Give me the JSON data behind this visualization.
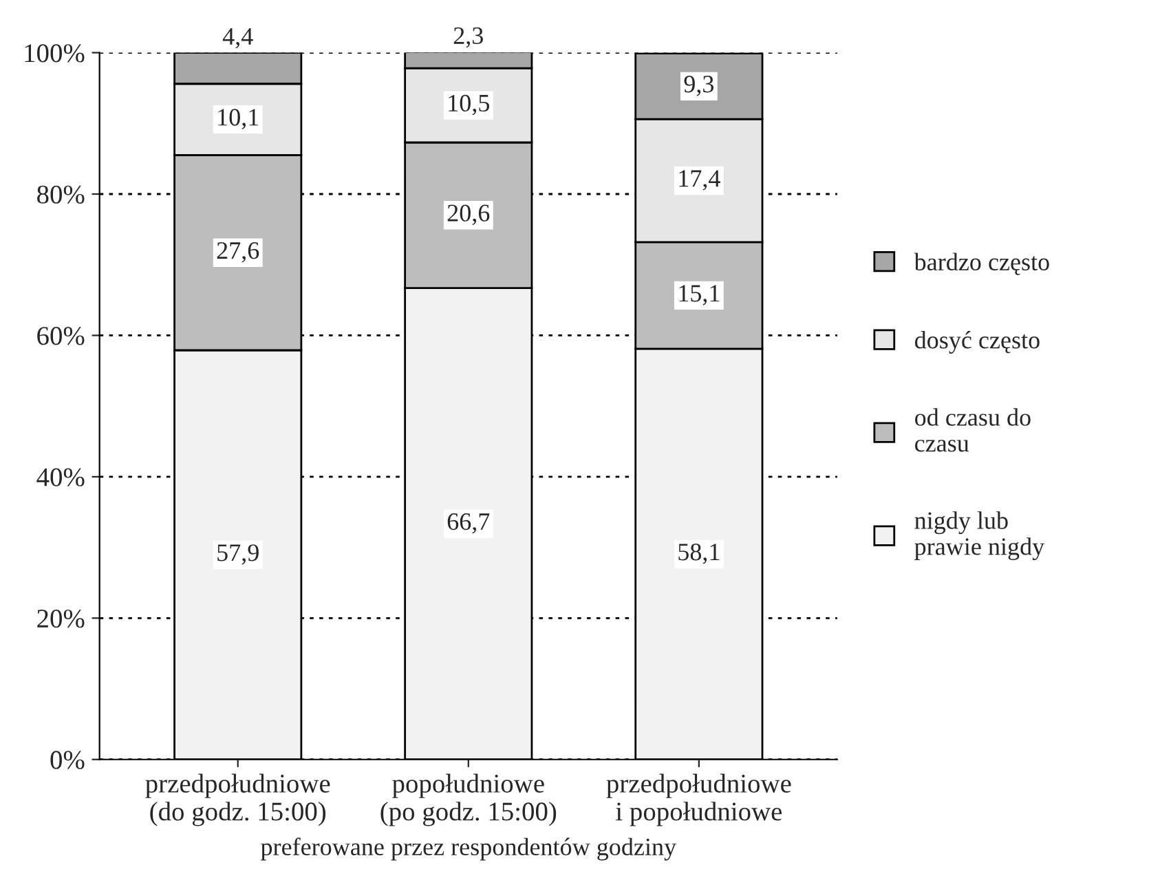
{
  "chart_data": {
    "type": "bar",
    "stacked": true,
    "categories": [
      "przedpołudniowe\n(do godz. 15:00)",
      "popołudniowe\n(po godz. 15:00)",
      "przedpołudniowe\ni popołudniowe"
    ],
    "xlabel": "preferowane przez respondentów godziny",
    "series": [
      {
        "name": "nigdy lub\nprawie nigdy",
        "color": "#f2f2f2",
        "values": [
          57.9,
          66.7,
          58.1
        ],
        "value_labels": [
          "57,9",
          "66,7",
          "58,1"
        ]
      },
      {
        "name": "od czasu do\nczasu",
        "color": "#bdbdbd",
        "values": [
          27.6,
          20.6,
          15.1
        ],
        "value_labels": [
          "27,6",
          "20,6",
          "15,1"
        ]
      },
      {
        "name": "dosyć często",
        "color": "#e6e6e6",
        "values": [
          10.1,
          10.5,
          17.4
        ],
        "value_labels": [
          "10,1",
          "10,5",
          "17,4"
        ]
      },
      {
        "name": "bardzo często",
        "color": "#a6a6a6",
        "values": [
          4.4,
          2.3,
          9.3
        ],
        "value_labels": [
          "4,4",
          "2,3",
          "9,3"
        ]
      }
    ],
    "ylim": [
      0,
      100
    ],
    "yticks": [
      {
        "value": 0,
        "label": "0%"
      },
      {
        "value": 20,
        "label": "20%"
      },
      {
        "value": 40,
        "label": "40%"
      },
      {
        "value": 60,
        "label": "60%"
      },
      {
        "value": 80,
        "label": "80%"
      },
      {
        "value": 100,
        "label": "100%"
      }
    ],
    "grid": "y",
    "legend": "right"
  }
}
